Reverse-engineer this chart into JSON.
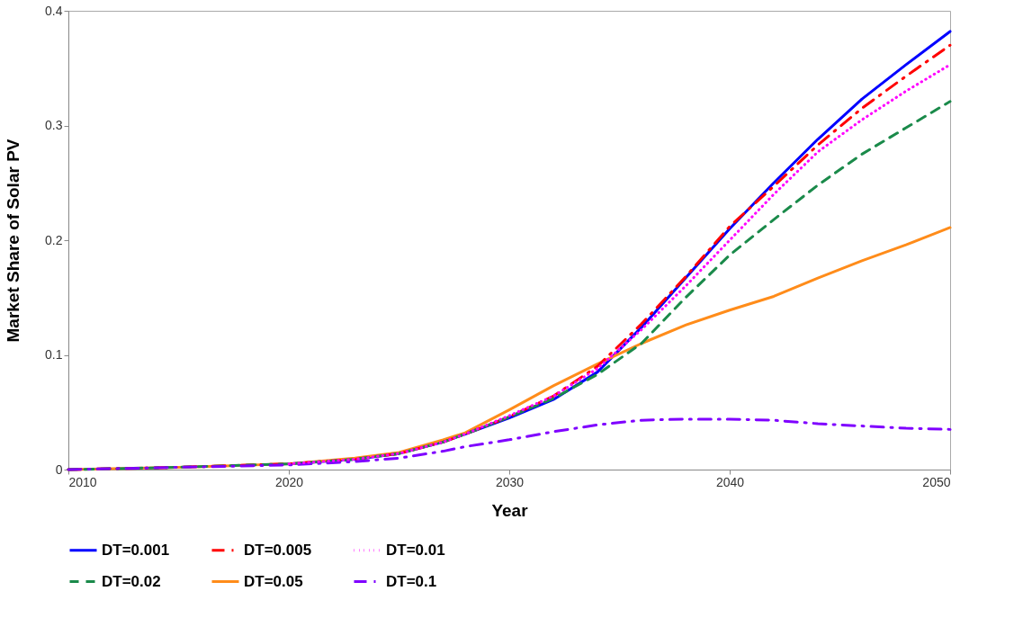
{
  "chart_data": {
    "type": "line",
    "xlabel": "Year",
    "ylabel": "Market Share of Solar PV",
    "x": [
      2010,
      2015,
      2020,
      2023,
      2025,
      2027,
      2028,
      2030,
      2032,
      2034,
      2036,
      2038,
      2040,
      2042,
      2044,
      2046,
      2048,
      2050
    ],
    "xlim": [
      2010,
      2050
    ],
    "xticks": [
      2010,
      2020,
      2030,
      2040,
      2050
    ],
    "ylim": [
      0,
      0.4
    ],
    "yticks": [
      0,
      0.1,
      0.2,
      0.3,
      0.4
    ],
    "grid": false,
    "legend": "bottom",
    "marker": "none",
    "series": [
      {
        "name": "DT=0.001",
        "color": "#0000ff",
        "line_style": "solid",
        "values": [
          null,
          null,
          0.005,
          0.009,
          0.014,
          0.024,
          0.031,
          0.045,
          0.061,
          0.085,
          0.124,
          0.167,
          0.21,
          0.25,
          0.288,
          0.323,
          0.353,
          0.382
        ]
      },
      {
        "name": "DT=0.005",
        "color": "#ff0000",
        "line_style": "dashdot",
        "values": [
          0,
          0.002,
          0.005,
          0.009,
          0.014,
          0.024,
          0.031,
          0.046,
          0.064,
          0.09,
          0.127,
          0.168,
          0.212,
          0.247,
          0.283,
          0.315,
          0.343,
          0.37
        ]
      },
      {
        "name": "DT=0.01",
        "color": "#ff00ff",
        "line_style": "dotted",
        "values": [
          null,
          null,
          0.005,
          0.009,
          0.014,
          0.024,
          0.031,
          0.047,
          0.064,
          0.088,
          0.122,
          0.16,
          0.2,
          0.24,
          0.277,
          0.305,
          0.33,
          0.353
        ]
      },
      {
        "name": "DT=0.02",
        "color": "#1a8a4a",
        "line_style": "dashed",
        "values": [
          0,
          0.002,
          0.005,
          0.009,
          0.014,
          0.024,
          0.031,
          0.046,
          0.062,
          0.083,
          0.11,
          0.15,
          0.187,
          0.218,
          0.248,
          0.275,
          0.298,
          0.321
        ]
      },
      {
        "name": "DT=0.05",
        "color": "#ff8c1a",
        "line_style": "solid",
        "values": [
          0,
          0.002,
          0.005,
          0.01,
          0.015,
          0.026,
          0.032,
          0.052,
          0.073,
          0.092,
          0.11,
          0.126,
          0.139,
          0.151,
          0.167,
          0.182,
          0.196,
          0.211
        ]
      },
      {
        "name": "DT=0.1",
        "color": "#7f00ff",
        "line_style": "dashdot",
        "values": [
          0,
          0.002,
          0.004,
          0.007,
          0.01,
          0.016,
          0.02,
          0.026,
          0.033,
          0.039,
          0.043,
          0.044,
          0.044,
          0.043,
          0.04,
          0.038,
          0.036,
          0.035
        ]
      }
    ]
  }
}
